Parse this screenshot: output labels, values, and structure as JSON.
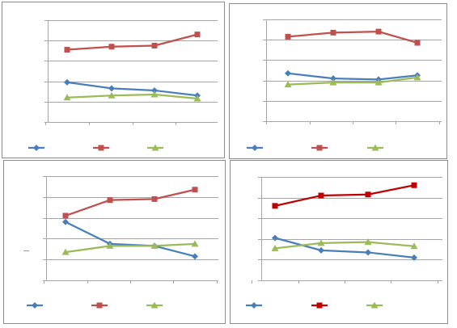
{
  "chart_data": [
    {
      "type": "line",
      "x": [
        1,
        2,
        3,
        4
      ],
      "ylim": [
        0,
        100
      ],
      "grid": true,
      "legend": "bottom",
      "series": [
        {
          "values": [
            39,
            33,
            31,
            26
          ],
          "color": "#4a7ebb",
          "marker": "diamond"
        },
        {
          "values": [
            71,
            74,
            75,
            86
          ],
          "color": "#c0504d",
          "marker": "square"
        },
        {
          "values": [
            24,
            26,
            27,
            23
          ],
          "color": "#9bbb59",
          "marker": "triangle"
        }
      ]
    },
    {
      "type": "line",
      "x": [
        1,
        2,
        3,
        4
      ],
      "ylim": [
        0,
        100
      ],
      "grid": true,
      "legend": "bottom",
      "series": [
        {
          "values": [
            47,
            42,
            41,
            45
          ],
          "color": "#4a7ebb",
          "marker": "diamond"
        },
        {
          "values": [
            83,
            87,
            88,
            77
          ],
          "color": "#c0504d",
          "marker": "square"
        },
        {
          "values": [
            36,
            38,
            38,
            43
          ],
          "color": "#9bbb59",
          "marker": "triangle"
        }
      ]
    },
    {
      "type": "line",
      "x": [
        1,
        2,
        3,
        4
      ],
      "ylim": [
        0,
        100
      ],
      "grid": true,
      "legend": "bottom",
      "series": [
        {
          "values": [
            56,
            35,
            33,
            23
          ],
          "color": "#4a7ebb",
          "marker": "diamond"
        },
        {
          "values": [
            62,
            77,
            78,
            87
          ],
          "color": "#c0504d",
          "marker": "square"
        },
        {
          "values": [
            27,
            33,
            33,
            35
          ],
          "color": "#9bbb59",
          "marker": "triangle"
        }
      ]
    },
    {
      "type": "line",
      "x": [
        1,
        2,
        3,
        4
      ],
      "ylim": [
        0,
        100
      ],
      "grid": true,
      "legend": "bottom",
      "series": [
        {
          "values": [
            41,
            29,
            27,
            22
          ],
          "color": "#4a7ebb",
          "marker": "diamond"
        },
        {
          "values": [
            72,
            82,
            83,
            92
          ],
          "color": "#c00000",
          "marker": "square"
        },
        {
          "values": [
            31,
            36,
            37,
            33
          ],
          "color": "#9bbb59",
          "marker": "triangle"
        }
      ]
    }
  ]
}
